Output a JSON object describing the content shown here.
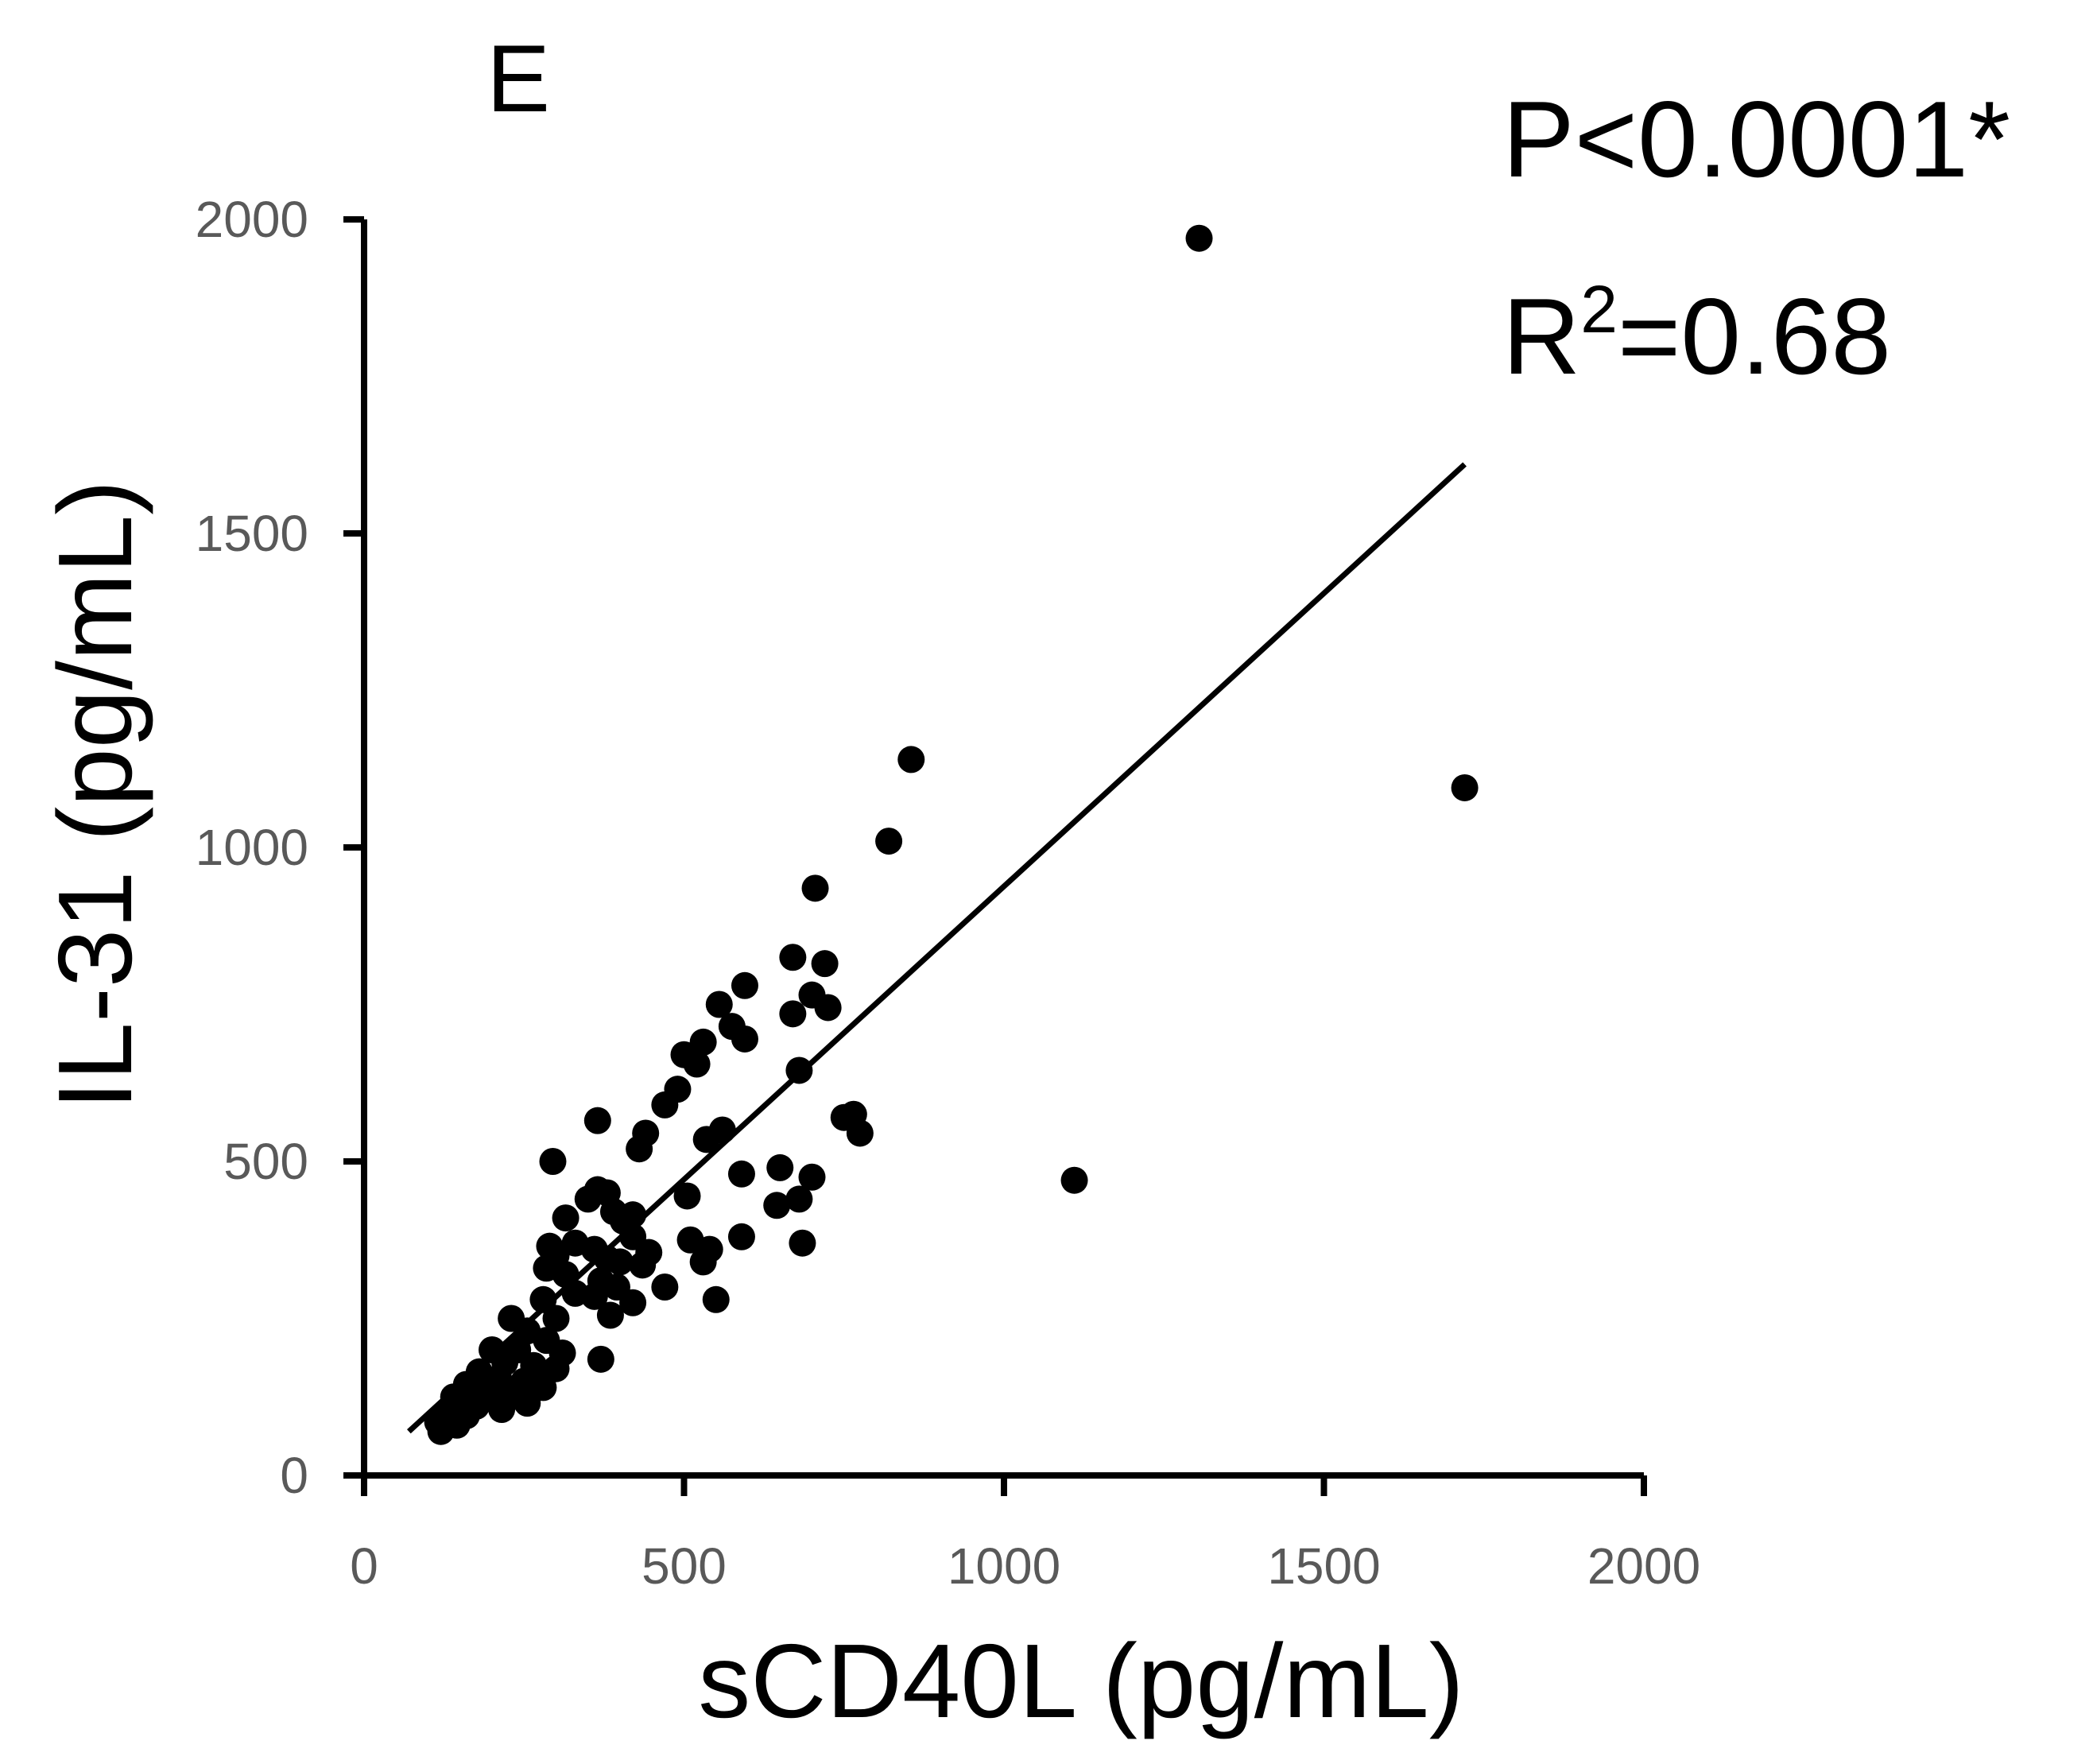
{
  "chart_data": {
    "type": "scatter",
    "panel_label": "E",
    "xlabel": "sCD40L (pg/mL)",
    "ylabel": "IL-31 (pg/mL)",
    "xlim": [
      0,
      2000
    ],
    "ylim": [
      0,
      2000
    ],
    "xticks": [
      "0",
      "500",
      "1000",
      "1500",
      "2000"
    ],
    "yticks": [
      "0",
      "500",
      "1000",
      "1500",
      "2000"
    ],
    "annotation": {
      "p_value": "P<0.0001*",
      "r2_prefix": "R",
      "r2_sup": "2",
      "r2_value": "=0.68"
    },
    "regression": {
      "x": [
        70,
        1720
      ],
      "y": [
        70,
        1610
      ]
    },
    "points": [
      [
        1305,
        1970
      ],
      [
        855,
        1140
      ],
      [
        1720,
        1095
      ],
      [
        820,
        1010
      ],
      [
        1110,
        470
      ],
      [
        705,
        935
      ],
      [
        670,
        825
      ],
      [
        720,
        815
      ],
      [
        595,
        780
      ],
      [
        555,
        750
      ],
      [
        700,
        765
      ],
      [
        725,
        745
      ],
      [
        670,
        735
      ],
      [
        575,
        715
      ],
      [
        530,
        690
      ],
      [
        595,
        695
      ],
      [
        500,
        670
      ],
      [
        520,
        655
      ],
      [
        680,
        645
      ],
      [
        490,
        615
      ],
      [
        470,
        590
      ],
      [
        765,
        575
      ],
      [
        750,
        570
      ],
      [
        365,
        565
      ],
      [
        440,
        545
      ],
      [
        775,
        545
      ],
      [
        560,
        550
      ],
      [
        535,
        535
      ],
      [
        430,
        520
      ],
      [
        590,
        480
      ],
      [
        650,
        490
      ],
      [
        700,
        475
      ],
      [
        295,
        500
      ],
      [
        365,
        455
      ],
      [
        380,
        450
      ],
      [
        350,
        440
      ],
      [
        505,
        445
      ],
      [
        680,
        440
      ],
      [
        645,
        430
      ],
      [
        390,
        420
      ],
      [
        420,
        415
      ],
      [
        405,
        405
      ],
      [
        315,
        410
      ],
      [
        510,
        375
      ],
      [
        420,
        380
      ],
      [
        590,
        380
      ],
      [
        290,
        365
      ],
      [
        330,
        370
      ],
      [
        360,
        360
      ],
      [
        445,
        355
      ],
      [
        540,
        360
      ],
      [
        685,
        370
      ],
      [
        300,
        350
      ],
      [
        380,
        345
      ],
      [
        400,
        340
      ],
      [
        435,
        335
      ],
      [
        530,
        340
      ],
      [
        285,
        330
      ],
      [
        315,
        320
      ],
      [
        370,
        310
      ],
      [
        395,
        300
      ],
      [
        470,
        300
      ],
      [
        330,
        290
      ],
      [
        360,
        285
      ],
      [
        280,
        280
      ],
      [
        420,
        275
      ],
      [
        550,
        280
      ],
      [
        230,
        250
      ],
      [
        300,
        250
      ],
      [
        385,
        255
      ],
      [
        255,
        230
      ],
      [
        285,
        215
      ],
      [
        200,
        200
      ],
      [
        240,
        200
      ],
      [
        310,
        195
      ],
      [
        370,
        185
      ],
      [
        220,
        180
      ],
      [
        265,
        175
      ],
      [
        300,
        170
      ],
      [
        180,
        165
      ],
      [
        210,
        155
      ],
      [
        250,
        150
      ],
      [
        160,
        145
      ],
      [
        280,
        140
      ],
      [
        195,
        130
      ],
      [
        230,
        125
      ],
      [
        140,
        125
      ],
      [
        255,
        115
      ],
      [
        175,
        110
      ],
      [
        215,
        105
      ],
      [
        130,
        100
      ],
      [
        160,
        95
      ],
      [
        115,
        85
      ],
      [
        145,
        80
      ],
      [
        120,
        70
      ]
    ]
  }
}
